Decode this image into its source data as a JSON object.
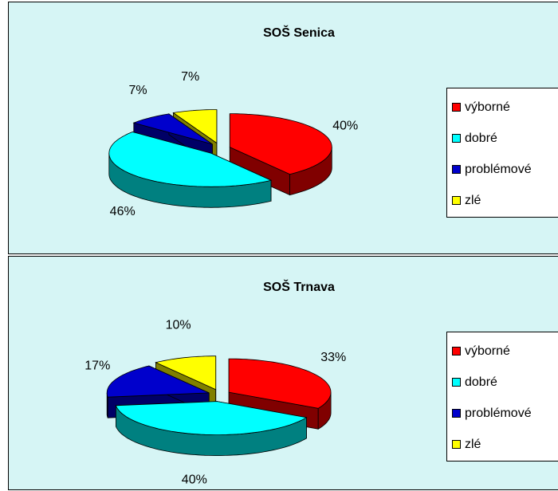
{
  "chart_data": [
    {
      "type": "pie",
      "title": "SOŠ Senica",
      "categories": [
        "výborné",
        "dobré",
        "problémové",
        "zlé"
      ],
      "values": [
        40,
        46,
        7,
        7
      ],
      "value_labels": [
        "40%",
        "46%",
        "7%",
        "7%"
      ],
      "colors": [
        "#ff0000",
        "#00ffff",
        "#0000cc",
        "#ffff00"
      ],
      "legend": "right"
    },
    {
      "type": "pie",
      "title": "SOŠ Trnava",
      "categories": [
        "výborné",
        "dobré",
        "problémové",
        "zlé"
      ],
      "values": [
        33,
        40,
        17,
        10
      ],
      "value_labels": [
        "33%",
        "40%",
        "17%",
        "10%"
      ],
      "colors": [
        "#ff0000",
        "#00ffff",
        "#0000cc",
        "#ffff00"
      ],
      "legend": "right"
    }
  ]
}
